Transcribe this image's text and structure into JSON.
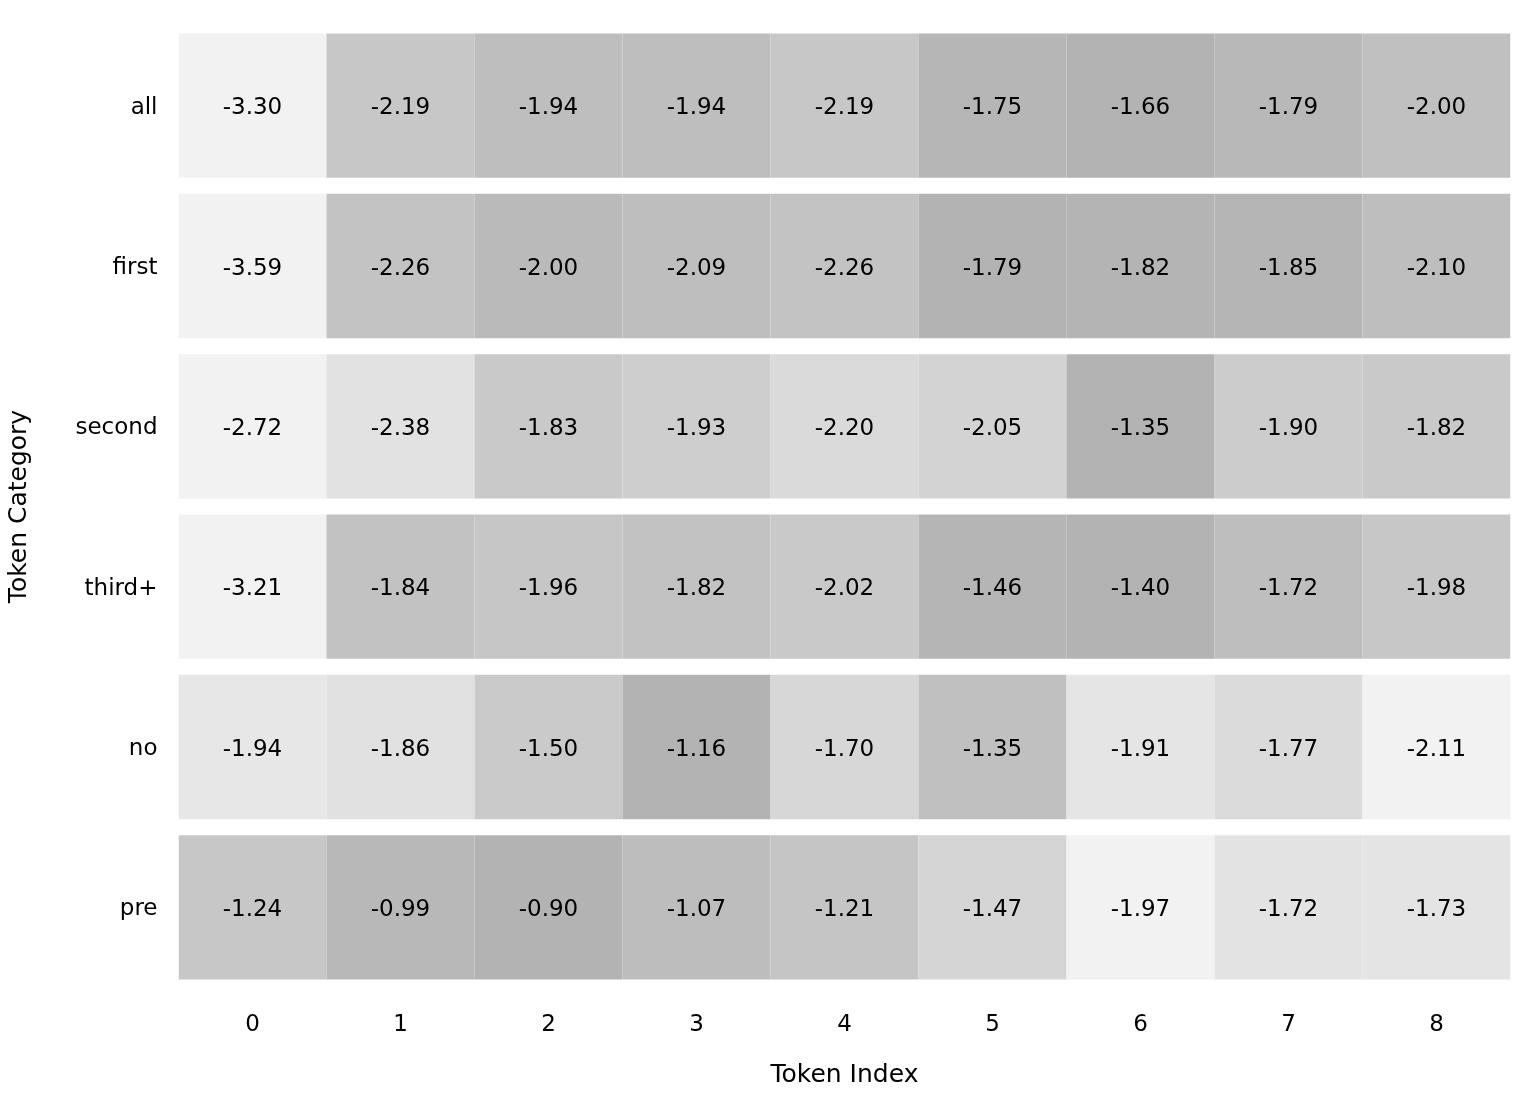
{
  "chart_data": {
    "type": "heatmap",
    "xlabel": "Token Index",
    "ylabel": "Token Category",
    "categories": [
      "0",
      "1",
      "2",
      "3",
      "4",
      "5",
      "6",
      "7",
      "8"
    ],
    "y_categories": [
      "all",
      "first",
      "second",
      "third+",
      "no",
      "pre"
    ],
    "cells": [
      [
        -3.3,
        -2.19,
        -1.94,
        -1.94,
        -2.19,
        -1.75,
        -1.66,
        -1.79,
        -2.0
      ],
      [
        -3.59,
        -2.26,
        -2.0,
        -2.09,
        -2.26,
        -1.79,
        -1.82,
        -1.85,
        -2.1
      ],
      [
        -2.72,
        -2.38,
        -1.83,
        -1.93,
        -2.2,
        -2.05,
        -1.35,
        -1.9,
        -1.82
      ],
      [
        -3.21,
        -1.84,
        -1.96,
        -1.82,
        -2.02,
        -1.46,
        -1.4,
        -1.72,
        -1.98
      ],
      [
        -1.94,
        -1.86,
        -1.5,
        -1.16,
        -1.7,
        -1.35,
        -1.91,
        -1.77,
        -2.11
      ],
      [
        -1.24,
        -0.99,
        -0.9,
        -1.07,
        -1.21,
        -1.47,
        -1.97,
        -1.72,
        -1.73
      ]
    ],
    "cell_labels": [
      [
        "-3.30",
        "-2.19",
        "-1.94",
        "-1.94",
        "-2.19",
        "-1.75",
        "-1.66",
        "-1.79",
        "-2.00"
      ],
      [
        "-3.59",
        "-2.26",
        "-2.00",
        "-2.09",
        "-2.26",
        "-1.79",
        "-1.82",
        "-1.85",
        "-2.10"
      ],
      [
        "-2.72",
        "-2.38",
        "-1.83",
        "-1.93",
        "-2.20",
        "-2.05",
        "-1.35",
        "-1.90",
        "-1.82"
      ],
      [
        "-3.21",
        "-1.84",
        "-1.96",
        "-1.82",
        "-2.02",
        "-1.46",
        "-1.40",
        "-1.72",
        "-1.98"
      ],
      [
        "-1.94",
        "-1.86",
        "-1.50",
        "-1.16",
        "-1.70",
        "-1.35",
        "-1.91",
        "-1.77",
        "-2.11"
      ],
      [
        "-1.24",
        "-0.99",
        "-0.90",
        "-1.07",
        "-1.21",
        "-1.47",
        "-1.97",
        "-1.72",
        "-1.73"
      ]
    ],
    "data_labels": true
  }
}
